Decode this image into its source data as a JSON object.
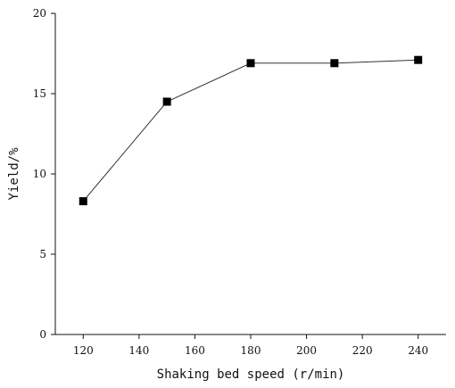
{
  "chart_data": {
    "type": "line",
    "x": [
      120,
      150,
      180,
      210,
      240
    ],
    "series": [
      {
        "values": [
          8.3,
          14.5,
          16.9,
          16.9,
          17.1
        ]
      }
    ],
    "xlabel": "Shaking bed speed (r/min)",
    "ylabel": "Yield/%",
    "xlim": [
      110,
      250
    ],
    "ylim": [
      0,
      20
    ],
    "xticks": [
      120,
      140,
      160,
      180,
      200,
      220,
      240
    ],
    "yticks": [
      0,
      5,
      10,
      15,
      20
    ],
    "marker": "square",
    "grid": false,
    "legend": "none"
  }
}
